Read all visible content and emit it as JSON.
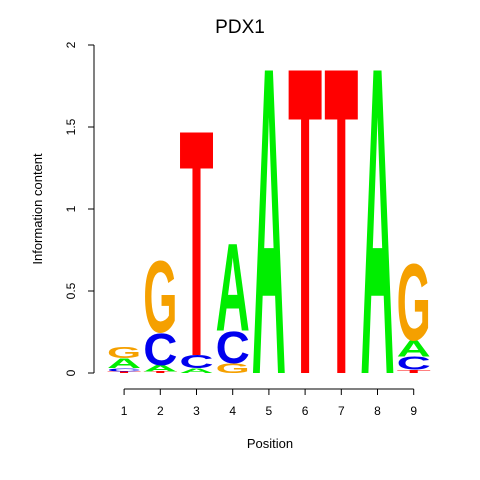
{
  "chart_data": {
    "type": "sequence-logo",
    "title": "PDX1",
    "xlabel": "Position",
    "ylabel": "Information content",
    "ylim": [
      0,
      2
    ],
    "y_ticks": [
      "0",
      "0.5",
      "1",
      "1.5",
      "2"
    ],
    "y_tick_values": [
      0,
      0.5,
      1,
      1.5,
      2
    ],
    "positions": [
      "1",
      "2",
      "3",
      "4",
      "5",
      "6",
      "7",
      "8",
      "9"
    ],
    "colors": {
      "A": "#00ee00",
      "C": "#0000ee",
      "G": "#f5a000",
      "T": "#ff0000"
    },
    "columns": [
      {
        "position": "1",
        "letters": [
          {
            "base": "T",
            "height": 0.01
          },
          {
            "base": "C",
            "height": 0.02
          },
          {
            "base": "A",
            "height": 0.06
          },
          {
            "base": "G",
            "height": 0.07
          }
        ]
      },
      {
        "position": "2",
        "letters": [
          {
            "base": "T",
            "height": 0.01
          },
          {
            "base": "A",
            "height": 0.04
          },
          {
            "base": "C",
            "height": 0.2
          },
          {
            "base": "G",
            "height": 0.45
          }
        ]
      },
      {
        "position": "3",
        "letters": [
          {
            "base": "A",
            "height": 0.03
          },
          {
            "base": "C",
            "height": 0.08
          },
          {
            "base": "T",
            "height": 1.42
          }
        ]
      },
      {
        "position": "4",
        "letters": [
          {
            "base": "G",
            "height": 0.06
          },
          {
            "base": "C",
            "height": 0.2
          },
          {
            "base": "A",
            "height": 0.55
          }
        ]
      },
      {
        "position": "5",
        "letters": [
          {
            "base": "A",
            "height": 1.93
          }
        ]
      },
      {
        "position": "6",
        "letters": [
          {
            "base": "T",
            "height": 1.93
          }
        ]
      },
      {
        "position": "7",
        "letters": [
          {
            "base": "T",
            "height": 1.93
          }
        ]
      },
      {
        "position": "8",
        "letters": [
          {
            "base": "A",
            "height": 1.93
          }
        ]
      },
      {
        "position": "9",
        "letters": [
          {
            "base": "T",
            "height": 0.02
          },
          {
            "base": "C",
            "height": 0.08
          },
          {
            "base": "A",
            "height": 0.1
          },
          {
            "base": "G",
            "height": 0.48
          }
        ]
      }
    ]
  }
}
